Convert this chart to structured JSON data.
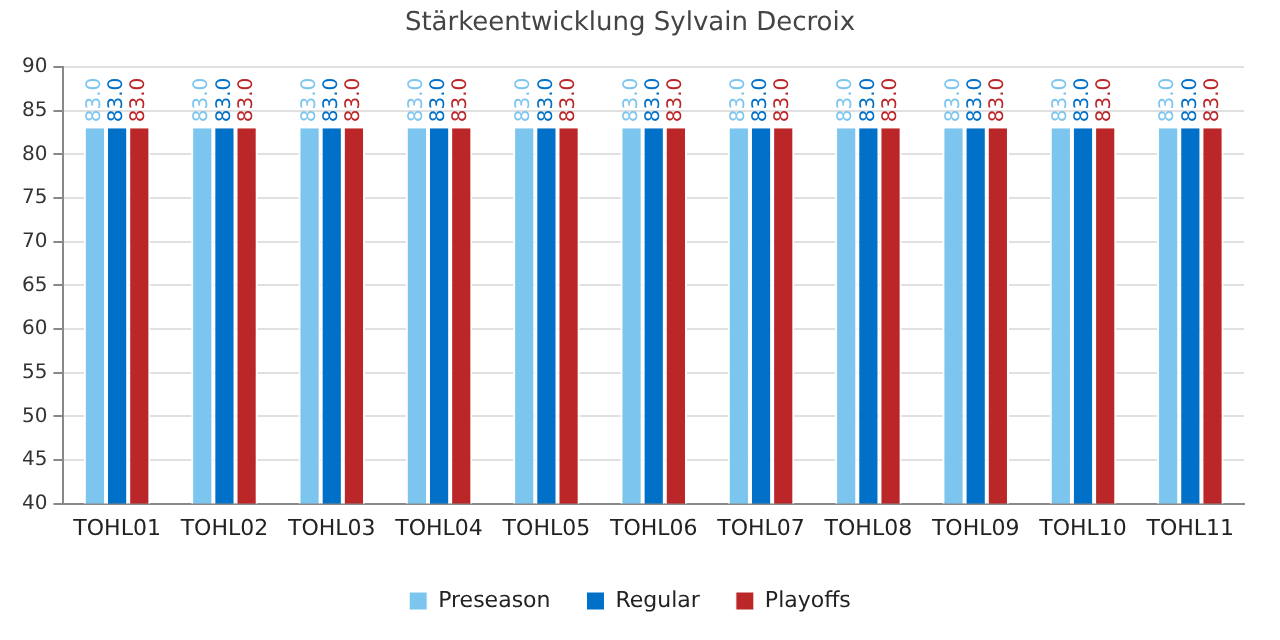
{
  "chart_data": {
    "type": "bar",
    "title": "Stärkeentwicklung Sylvain Decroix",
    "categories": [
      "TOHL01",
      "TOHL02",
      "TOHL03",
      "TOHL04",
      "TOHL05",
      "TOHL06",
      "TOHL07",
      "TOHL08",
      "TOHL09",
      "TOHL10",
      "TOHL11"
    ],
    "series": [
      {
        "name": "Preseason",
        "color": "#7cc5ef",
        "values": [
          83,
          83,
          83,
          83,
          83,
          83,
          83,
          83,
          83,
          83,
          83
        ],
        "value_labels": [
          "83.0",
          "83.0",
          "83.0",
          "83.0",
          "83.0",
          "83.0",
          "83.0",
          "83.0",
          "83.0",
          "83.0",
          "83.0"
        ]
      },
      {
        "name": "Regular",
        "color": "#0070c8",
        "values": [
          83,
          83,
          83,
          83,
          83,
          83,
          83,
          83,
          83,
          83,
          83
        ],
        "value_labels": [
          "83.0",
          "83.0",
          "83.0",
          "83.0",
          "83.0",
          "83.0",
          "83.0",
          "83.0",
          "83.0",
          "83.0",
          "83.0"
        ]
      },
      {
        "name": "Playoffs",
        "color": "#bb2628",
        "values": [
          83,
          83,
          83,
          83,
          83,
          83,
          83,
          83,
          83,
          83,
          83
        ],
        "value_labels": [
          "83.0",
          "83.0",
          "83.0",
          "83.0",
          "83.0",
          "83.0",
          "83.0",
          "83.0",
          "83.0",
          "83.0",
          "83.0"
        ]
      }
    ],
    "ylim": [
      40,
      90
    ],
    "yticks": [
      40,
      45,
      50,
      55,
      60,
      65,
      70,
      75,
      80,
      85,
      90
    ],
    "grid": "y",
    "legend": "bottom"
  }
}
